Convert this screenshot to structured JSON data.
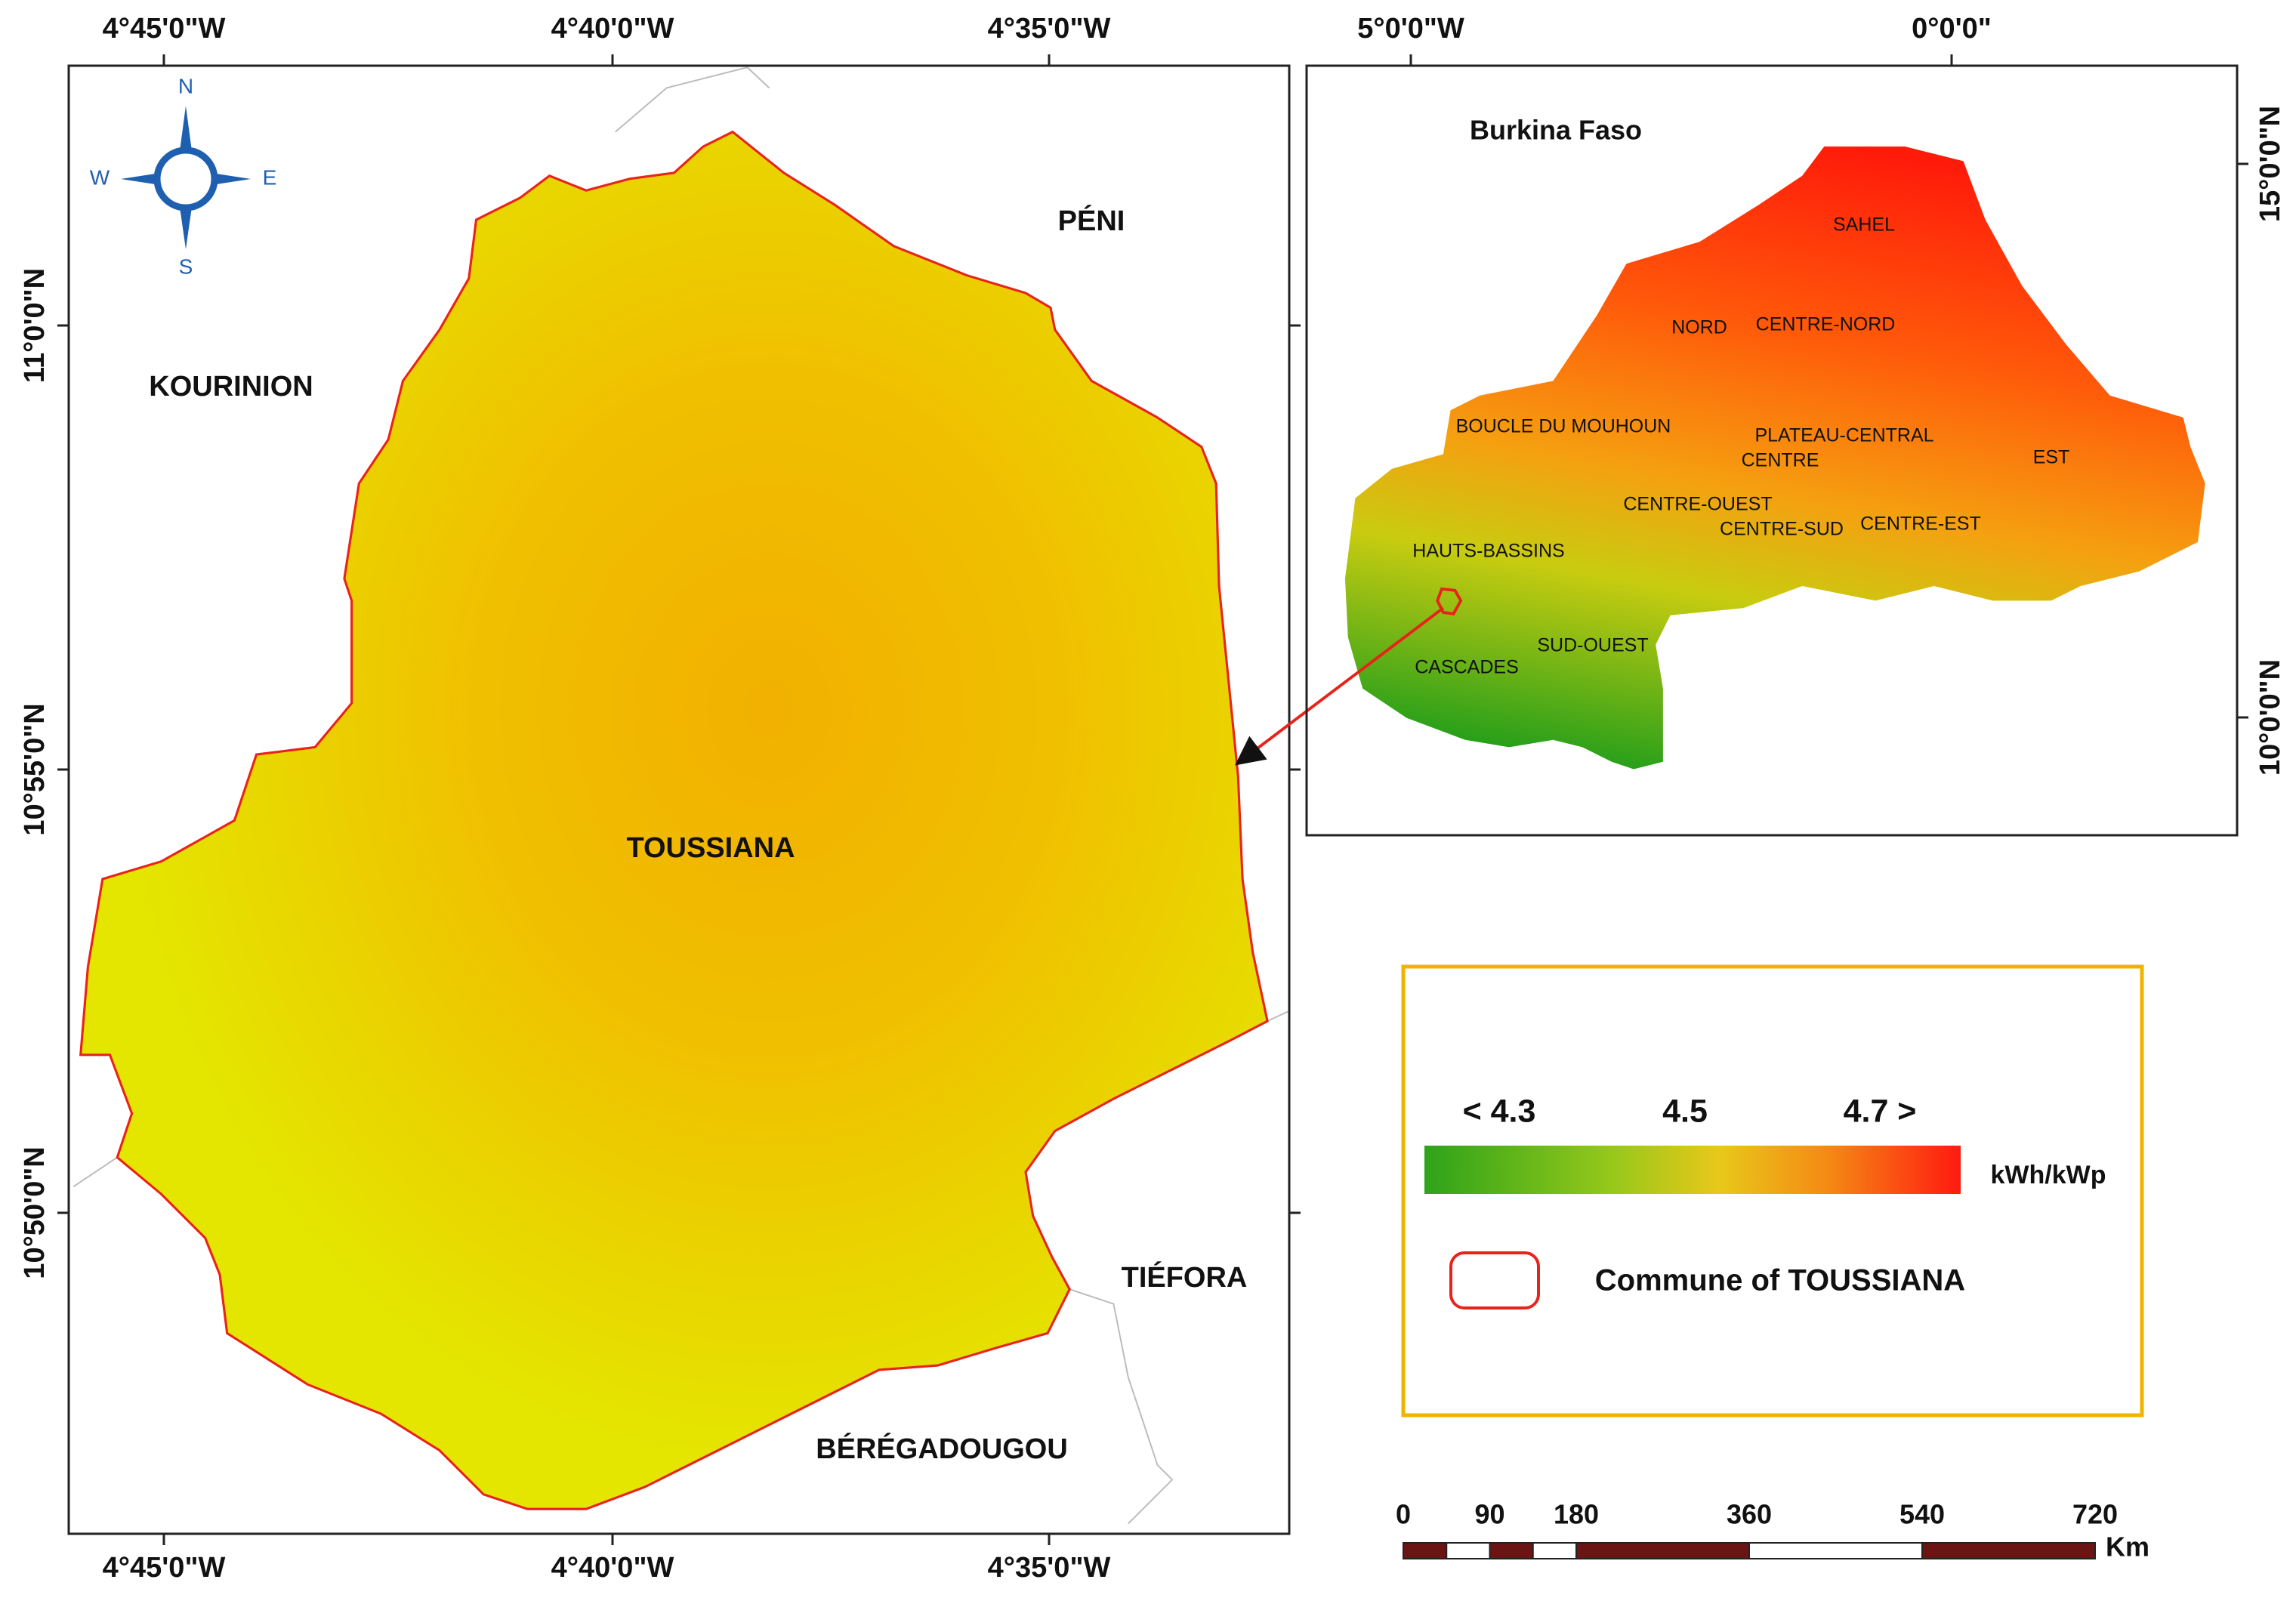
{
  "main_map": {
    "top_labels": [
      "4°45'0\"W",
      "4°40'0\"W",
      "4°35'0\"W"
    ],
    "bottom_labels": [
      "4°45'0\"W",
      "4°40'0\"W",
      "4°35'0\"W"
    ],
    "left_labels": [
      "11°0'0\"N",
      "10°55'0\"N",
      "10°50'0\"N"
    ],
    "place_labels": [
      "KOURINION",
      "PÉNI",
      "TOUSSIANA",
      "TIÉFORA",
      "BÉRÉGADOUGOU"
    ],
    "compass": {
      "n": "N",
      "e": "E",
      "s": "S",
      "w": "W"
    }
  },
  "inset_map": {
    "title": "Burkina Faso",
    "top_labels": [
      "5°0'0\"W",
      "0°0'0\""
    ],
    "right_labels": [
      "15°0'0\"N",
      "10°0'0\"N"
    ],
    "region_labels": [
      "SAHEL",
      "NORD",
      "CENTRE-NORD",
      "BOUCLE DU MOUHOUN",
      "PLATEAU-CENTRAL",
      "CENTRE",
      "EST",
      "CENTRE-OUEST",
      "CENTRE-SUD",
      "CENTRE-EST",
      "HAUTS-BASSINS",
      "SUD-OUEST",
      "CASCADES"
    ]
  },
  "legend": {
    "ticks": [
      "< 4.3",
      "4.5",
      "4.7 >"
    ],
    "unit": "kWh/kWp",
    "commune_label": "Commune of TOUSSIANA"
  },
  "scale_bar": {
    "ticks": [
      0,
      90,
      180,
      360,
      540,
      720
    ],
    "unit": "Km"
  }
}
